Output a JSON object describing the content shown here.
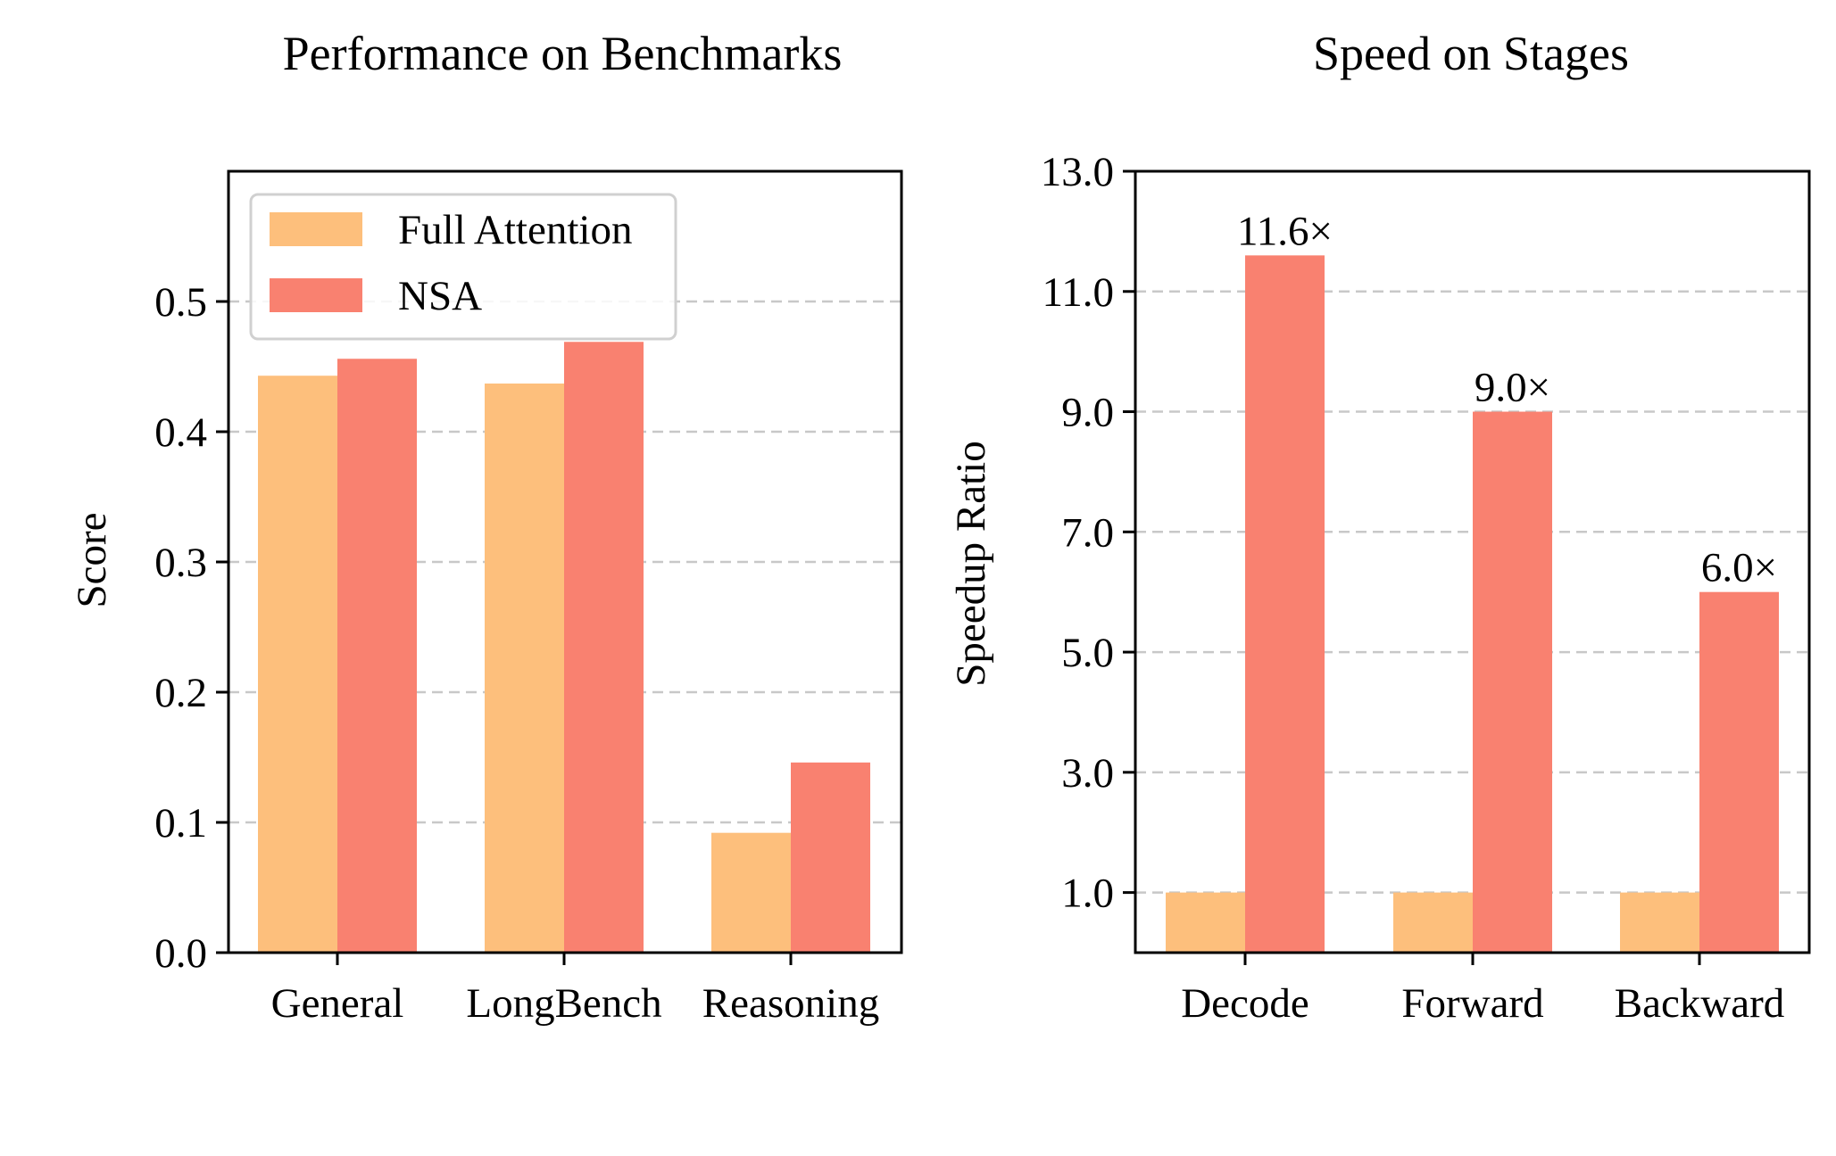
{
  "chart_data": [
    {
      "type": "bar",
      "title": "Performance on Benchmarks",
      "xlabel": "",
      "ylabel": "Score",
      "categories": [
        "General",
        "LongBench",
        "Reasoning"
      ],
      "series": [
        {
          "name": "Full Attention",
          "values": [
            0.443,
            0.437,
            0.092
          ]
        },
        {
          "name": "NSA",
          "values": [
            0.456,
            0.469,
            0.146
          ]
        }
      ],
      "ylim": [
        0.0,
        0.6
      ],
      "yticks": [
        0.0,
        0.1,
        0.2,
        0.3,
        0.4,
        0.5
      ],
      "ytick_labels": [
        "0.0",
        "0.1",
        "0.2",
        "0.3",
        "0.4",
        "0.5"
      ],
      "grid": "y dashed",
      "legend_position": "top-left"
    },
    {
      "type": "bar",
      "title": "Speed on Stages",
      "xlabel": "",
      "ylabel": "Speedup Ratio",
      "categories": [
        "Decode",
        "Forward",
        "Backward"
      ],
      "series": [
        {
          "name": "Full Attention",
          "values": [
            1.0,
            1.0,
            1.0
          ]
        },
        {
          "name": "NSA",
          "values": [
            11.6,
            9.0,
            6.0
          ]
        }
      ],
      "annotations": [
        "11.6×",
        "9.0×",
        "6.0×"
      ],
      "ylim": [
        0.0,
        13.0
      ],
      "yticks": [
        1.0,
        3.0,
        5.0,
        7.0,
        9.0,
        11.0,
        13.0
      ],
      "ytick_labels": [
        "1.0",
        "3.0",
        "5.0",
        "7.0",
        "9.0",
        "11.0",
        "13.0"
      ],
      "grid": "y dashed",
      "legend_position": "none"
    }
  ],
  "colors": {
    "full_attention": "#FDBF7C",
    "nsa": "#F98170",
    "grid": "#c8c8c8",
    "axis": "#000000"
  }
}
